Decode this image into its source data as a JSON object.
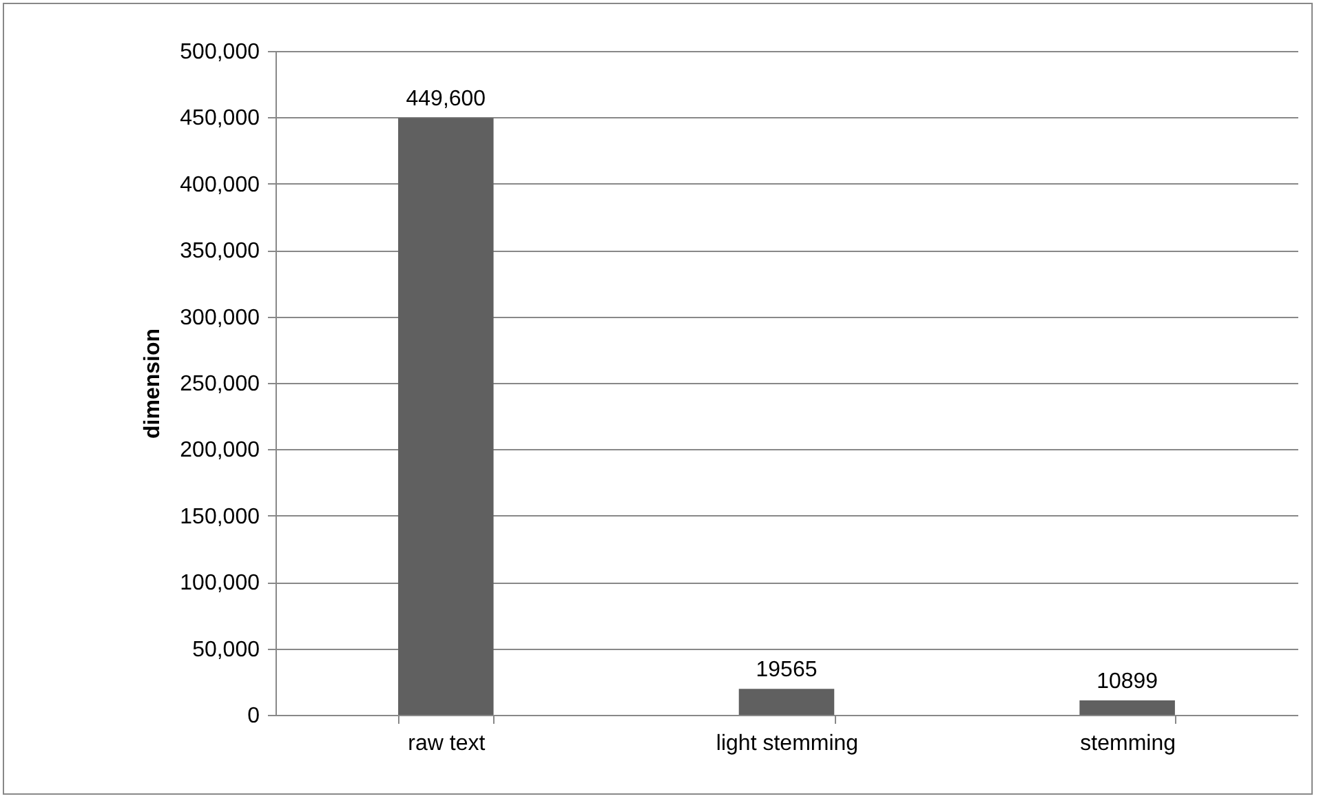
{
  "chart_data": {
    "type": "bar",
    "ylabel": "dimension",
    "categories": [
      "raw text",
      "light stemming",
      "stemming"
    ],
    "values": [
      449600,
      19565,
      10899
    ],
    "value_labels": [
      "449,600",
      "19565",
      "10899"
    ],
    "color": "#606060",
    "ylim": [
      0,
      500000
    ],
    "yticks": [
      0,
      {
        "value": 50000,
        "label": "50,000"
      },
      {
        "value": 100000,
        "label": "100,000"
      },
      {
        "value": 150000,
        "label": "150,000"
      },
      {
        "value": 200000,
        "label": "200,000"
      },
      {
        "value": 250000,
        "label": "250,000"
      },
      {
        "value": 300000,
        "label": "300,000"
      },
      {
        "value": 350000,
        "label": "350,000"
      },
      {
        "value": 400000,
        "label": "400,000"
      },
      {
        "value": 450000,
        "label": "450,000"
      },
      {
        "value": 500000,
        "label": "500,000"
      }
    ],
    "grid": "y"
  }
}
